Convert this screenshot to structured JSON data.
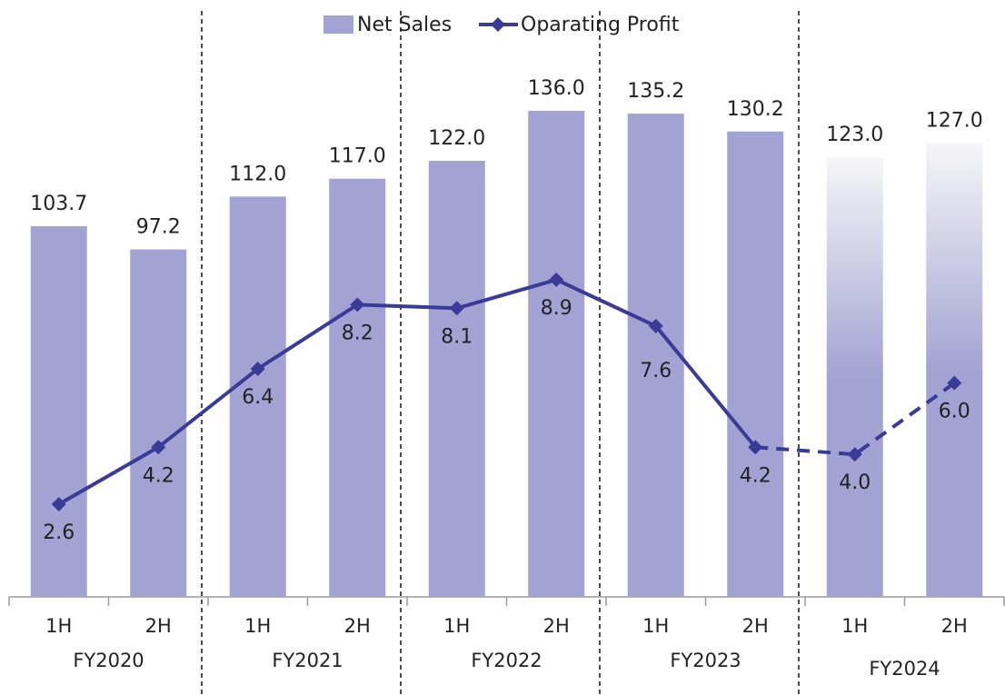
{
  "chart_data": {
    "type": "bar-line",
    "categories": [
      "1H",
      "2H",
      "1H",
      "2H",
      "1H",
      "2H",
      "1H",
      "2H",
      "1H",
      "2H"
    ],
    "groups": [
      "FY2020",
      "FY2021",
      "FY2022",
      "FY2023",
      "FY2024"
    ],
    "forecast": [
      false,
      false,
      false,
      false,
      false,
      false,
      false,
      false,
      true,
      true
    ],
    "series": [
      {
        "name": "Net Sales",
        "type": "bar",
        "color": "#a3a3d3",
        "values": [
          103.7,
          97.2,
          112,
          117,
          122,
          136,
          135.2,
          130.2,
          123,
          127
        ],
        "value_labels": [
          "103.7",
          "97.2",
          "112.0",
          "117.0",
          "122.0",
          "136.0",
          "135.2",
          "130.2",
          "123.0",
          "127.0"
        ]
      },
      {
        "name": "Oparating Profit",
        "type": "line",
        "axis": "y2",
        "color": "#3a3a98",
        "values": [
          2.6,
          4.2,
          6.4,
          8.2,
          8.1,
          8.9,
          7.6,
          4.2,
          4.0,
          6.0
        ],
        "value_labels": [
          "2.6",
          "4.2",
          "6.4",
          "8.2",
          "8.1",
          "8.9",
          "7.6",
          "4.2",
          "4.0",
          "6.0"
        ]
      }
    ],
    "ylim": [
      0,
      167
    ],
    "y2lim": [
      0,
      16.75
    ],
    "grid": false,
    "legend": "top"
  }
}
